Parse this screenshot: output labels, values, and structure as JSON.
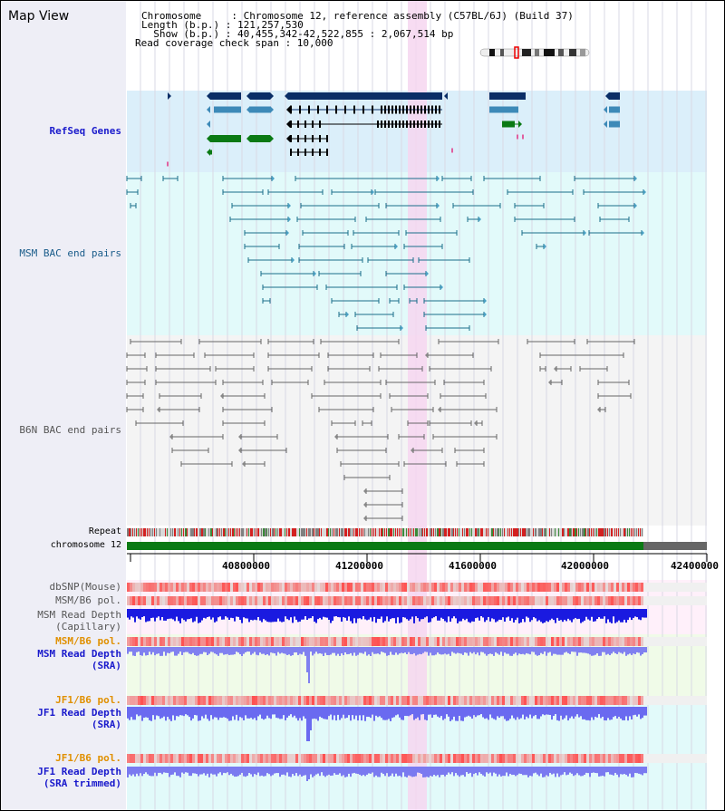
{
  "title": "Map View",
  "header": {
    "lines": [
      "Chromosome     : Chromosome 12, reference assembly (C57BL/6J) (Build 37)",
      "Length (b.p.) : 121,257,530",
      "  Show (b.p.) : 40,455,342-42,522,855 : 2,067,514 bp",
      "Read coverage check span : 10,000"
    ]
  },
  "tracks": {
    "refseq": "RefSeq Genes",
    "msm_bac": "MSM BAC end pairs",
    "b6n_bac": "B6N BAC end pairs",
    "repeat": "Repeat",
    "chromosome": "chromosome 12",
    "dbsnp": "dbSNP(Mouse)",
    "msm_pol": "MSM/B6 pol.",
    "msm_depth_cap_1": "MSM Read Depth",
    "msm_depth_cap_2": "(Capillary)",
    "msm_pol2": "MSM/B6 pol.",
    "msm_depth_sra_1": "MSM Read Depth",
    "msm_depth_sra_2": "(SRA)",
    "jf1_pol": "JF1/B6 pol.",
    "jf1_depth_sra_1": "JF1 Read Depth",
    "jf1_depth_sra_2": "(SRA)",
    "jf1_pol2": "JF1/B6 pol.",
    "jf1_depth_trim_1": "JF1 Read Depth",
    "jf1_depth_trim_2": "(SRA trimmed)"
  },
  "axis": {
    "ticks": [
      "40800000",
      "41200000",
      "41600000",
      "42000000",
      "42400000"
    ]
  },
  "colors": {
    "refseq_bg": "#dbeffa",
    "msm_bg": "#e2fafa",
    "b6n_bg": "#f4f4f4",
    "highlight": "#f6d6f0",
    "gene_dark": "#0a2e66",
    "gene_mid": "#3d8ab8",
    "gene_green": "#0a7a14",
    "msm_pair": "#1a6e8a",
    "b6n_pair": "#666666",
    "label_blue": "#1a1acc",
    "label_teal": "#1a5c8a",
    "label_orange": "#e09000"
  }
}
